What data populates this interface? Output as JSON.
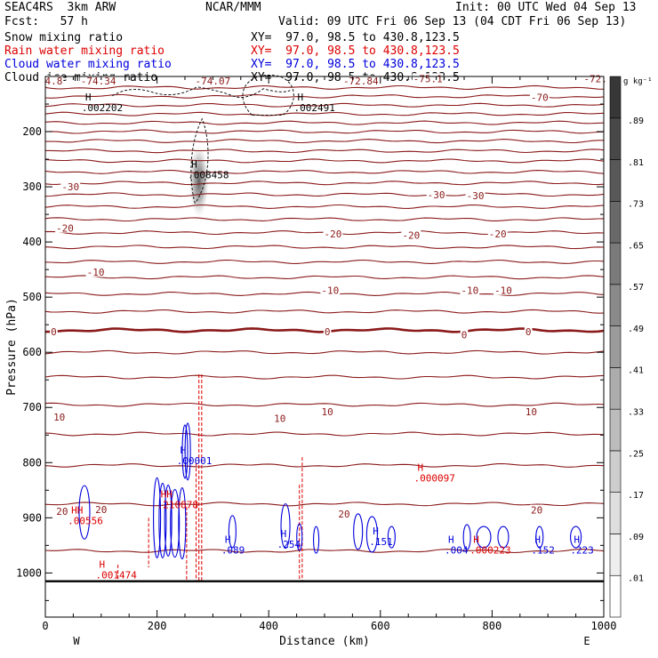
{
  "header": {
    "model": "SEAC4RS  3km ARW",
    "org": "NCAR/MMM",
    "init": "Init: 00 UTC Wed 04 Sep 13",
    "fcst": "Fcst:   57 h",
    "valid": "Valid: 09 UTC Fri 06 Sep 13 (04 CDT Fri 06 Sep 13)",
    "fields": [
      {
        "name": "Snow mixing ratio",
        "xy": "XY=  97.0, 98.5 to 430.8,123.5",
        "color": "#000000"
      },
      {
        "name": "Rain water mixing ratio",
        "xy": "XY=  97.0, 98.5 to 430.8,123.5",
        "color": "#dd0000"
      },
      {
        "name": "Cloud water mixing ratio",
        "xy": "XY=  97.0, 98.5 to 430.8,123.5",
        "color": "#0000dd"
      },
      {
        "name": "Cloud ice mixing ratio",
        "xy": "XY=  97.0, 98.5 to 430.8,123.5",
        "color": "#000000"
      }
    ]
  },
  "chart_data": {
    "type": "contour",
    "xlabel": "Distance (km)",
    "ylabel": "Pressure (hPa)",
    "xlim": [
      0,
      1000
    ],
    "ylim": [
      1080,
      100
    ],
    "x_ticks": [
      0,
      200,
      400,
      600,
      800,
      1000
    ],
    "y_ticks": [
      200,
      300,
      400,
      500,
      600,
      700,
      800,
      900,
      1000
    ],
    "x_left_label": "W",
    "x_right_label": "E",
    "surface_pressure": 1015,
    "colorbar": {
      "unit": "g kg⁻¹",
      "levels": [
        ".01",
        ".09",
        ".17",
        ".25",
        ".33",
        ".41",
        ".49",
        ".57",
        ".65",
        ".73",
        ".81",
        ".89"
      ]
    },
    "temperature_contours": {
      "color": "#8b1a1a",
      "pressures": [
        120,
        136,
        152,
        168,
        184,
        200,
        217,
        235,
        253,
        273,
        293,
        314,
        336,
        359,
        383,
        409,
        436,
        464,
        494,
        526,
        560,
        600,
        645,
        695,
        748,
        805,
        875,
        960
      ],
      "bold_pressure": 560,
      "labels": [
        {
          "text": "-74.34",
          "x": 95,
          "p": 108
        },
        {
          "text": "-74.07",
          "x": 300,
          "p": 108
        },
        {
          "text": "-72.84",
          "x": 565,
          "p": 108
        },
        {
          "text": "-75.1",
          "x": 685,
          "p": 104
        },
        {
          "text": "-72.",
          "x": 985,
          "p": 104
        },
        {
          "text": "4.8",
          "x": 15,
          "p": 108
        },
        {
          "text": "-70",
          "x": 885,
          "p": 138
        },
        {
          "text": "-30",
          "x": 45,
          "p": 300
        },
        {
          "text": "-30",
          "x": 700,
          "p": 314
        },
        {
          "text": "-30",
          "x": 770,
          "p": 316
        },
        {
          "text": "-20",
          "x": 35,
          "p": 375
        },
        {
          "text": "-20",
          "x": 515,
          "p": 385
        },
        {
          "text": "-20",
          "x": 655,
          "p": 388
        },
        {
          "text": "-20",
          "x": 810,
          "p": 385
        },
        {
          "text": "-10",
          "x": 90,
          "p": 455
        },
        {
          "text": "-10",
          "x": 510,
          "p": 488
        },
        {
          "text": "-10",
          "x": 760,
          "p": 488
        },
        {
          "text": "-10",
          "x": 820,
          "p": 488
        },
        {
          "text": "0",
          "x": 15,
          "p": 563
        },
        {
          "text": "0",
          "x": 505,
          "p": 563
        },
        {
          "text": "0",
          "x": 750,
          "p": 568
        },
        {
          "text": "0",
          "x": 865,
          "p": 563
        },
        {
          "text": "10",
          "x": 25,
          "p": 717
        },
        {
          "text": "10",
          "x": 420,
          "p": 720
        },
        {
          "text": "10",
          "x": 505,
          "p": 708
        },
        {
          "text": "10",
          "x": 870,
          "p": 708
        },
        {
          "text": "20",
          "x": 30,
          "p": 888
        },
        {
          "text": "20",
          "x": 100,
          "p": 885
        },
        {
          "text": "20",
          "x": 535,
          "p": 893
        },
        {
          "text": "20",
          "x": 880,
          "p": 886
        }
      ]
    },
    "extrema_labels": [
      {
        "mark": "H",
        "value": ".002202",
        "x": 65,
        "p": 148,
        "color": "#000000"
      },
      {
        "mark": "H",
        "value": ".002491",
        "x": 445,
        "p": 148,
        "color": "#000000"
      },
      {
        "mark": "H",
        "value": ".008458",
        "x": 255,
        "p": 270,
        "color": "#000000"
      },
      {
        "mark": "H",
        "value": ".00001",
        "x": 235,
        "p": 788,
        "color": "#0000dd"
      },
      {
        "mark": "H",
        "value": ".000097",
        "x": 660,
        "p": 820,
        "color": "#dd0000"
      },
      {
        "mark": "HH",
        "value": ".210878",
        "x": 200,
        "p": 868,
        "color": "#dd0000"
      },
      {
        "mark": "HH",
        "value": ".00556",
        "x": 40,
        "p": 897,
        "color": "#dd0000"
      },
      {
        "mark": "H",
        "value": ".089",
        "x": 315,
        "p": 950,
        "color": "#0000dd"
      },
      {
        "mark": "H",
        "value": ".254",
        "x": 415,
        "p": 940,
        "color": "#0000dd"
      },
      {
        "mark": "H",
        "value": ".151",
        "x": 580,
        "p": 935,
        "color": "#0000dd"
      },
      {
        "mark": "H",
        "value": ".001474",
        "x": 90,
        "p": 995,
        "color": "#dd0000"
      },
      {
        "mark": "H",
        "value": ".004",
        "x": 715,
        "p": 950,
        "color": "#0000dd"
      },
      {
        "mark": "H",
        "value": ".000223",
        "x": 760,
        "p": 950,
        "color": "#dd0000"
      },
      {
        "mark": "H",
        "value": ".152",
        "x": 870,
        "p": 950,
        "color": "#0000dd"
      },
      {
        "mark": "H",
        "value": ".223",
        "x": 940,
        "p": 950,
        "color": "#0000dd"
      }
    ],
    "snow_shading": {
      "x": 275,
      "p_top": 225,
      "p_bottom": 355,
      "peak": 0.6
    }
  }
}
